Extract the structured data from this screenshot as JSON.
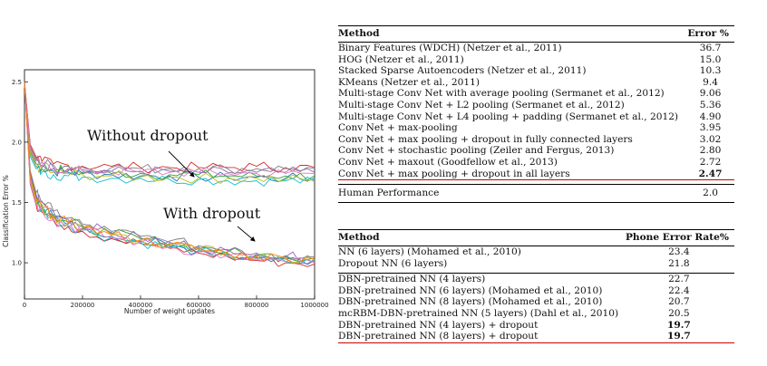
{
  "chart_data": {
    "type": "line",
    "title": "",
    "xlabel": "Number of weight updates",
    "ylabel": "Classification Error %",
    "xlim": [
      0,
      1000000
    ],
    "ylim": [
      0.7,
      2.6
    ],
    "x_ticks": [
      "0",
      "200000",
      "400000",
      "600000",
      "800000",
      "1000000"
    ],
    "y_ticks": [
      "1.0",
      "1.5",
      "2.0",
      "2.5"
    ],
    "annotations": [
      "Without dropout",
      "With dropout"
    ],
    "groups": [
      {
        "name": "Without dropout",
        "x": [
          0,
          20000,
          40000,
          60000,
          100000,
          150000,
          200000,
          300000,
          400000,
          500000,
          600000,
          700000,
          800000,
          900000,
          1000000
        ],
        "series": [
          {
            "color": "#1f77b4",
            "values": [
              2.5,
              1.9,
              1.8,
              1.78,
              1.76,
              1.75,
              1.74,
              1.73,
              1.72,
              1.72,
              1.71,
              1.71,
              1.71,
              1.7,
              1.7
            ]
          },
          {
            "color": "#2ca02c",
            "values": [
              2.5,
              1.92,
              1.82,
              1.79,
              1.78,
              1.76,
              1.75,
              1.74,
              1.74,
              1.73,
              1.73,
              1.72,
              1.72,
              1.72,
              1.72
            ]
          },
          {
            "color": "#d62728",
            "values": [
              2.5,
              1.98,
              1.88,
              1.84,
              1.82,
              1.81,
              1.8,
              1.8,
              1.79,
              1.79,
              1.79,
              1.79,
              1.8,
              1.79,
              1.79
            ]
          },
          {
            "color": "#17becf",
            "values": [
              2.5,
              1.88,
              1.78,
              1.75,
              1.73,
              1.72,
              1.71,
              1.7,
              1.7,
              1.69,
              1.69,
              1.68,
              1.68,
              1.68,
              1.67
            ]
          },
          {
            "color": "#9467bd",
            "values": [
              2.5,
              1.95,
              1.85,
              1.81,
              1.79,
              1.78,
              1.77,
              1.76,
              1.76,
              1.76,
              1.75,
              1.75,
              1.75,
              1.75,
              1.75
            ]
          },
          {
            "color": "#bcbd22",
            "values": [
              2.5,
              1.9,
              1.8,
              1.77,
              1.75,
              1.74,
              1.73,
              1.72,
              1.71,
              1.71,
              1.7,
              1.7,
              1.7,
              1.69,
              1.69
            ]
          },
          {
            "color": "#7f7f7f",
            "values": [
              2.5,
              1.96,
              1.86,
              1.83,
              1.81,
              1.8,
              1.79,
              1.79,
              1.78,
              1.78,
              1.78,
              1.78,
              1.78,
              1.78,
              1.78
            ]
          },
          {
            "color": "#e377c2",
            "values": [
              2.5,
              1.94,
              1.84,
              1.8,
              1.78,
              1.77,
              1.76,
              1.76,
              1.75,
              1.75,
              1.75,
              1.74,
              1.74,
              1.74,
              1.74
            ]
          }
        ]
      },
      {
        "name": "With dropout",
        "x": [
          0,
          20000,
          40000,
          60000,
          100000,
          150000,
          200000,
          300000,
          400000,
          500000,
          600000,
          700000,
          800000,
          900000,
          1000000
        ],
        "series": [
          {
            "color": "#1f77b4",
            "values": [
              2.5,
              1.7,
              1.52,
              1.45,
              1.38,
              1.32,
              1.28,
              1.22,
              1.18,
              1.14,
              1.1,
              1.07,
              1.04,
              1.03,
              1.02
            ]
          },
          {
            "color": "#2ca02c",
            "values": [
              2.5,
              1.72,
              1.55,
              1.48,
              1.4,
              1.34,
              1.3,
              1.24,
              1.2,
              1.16,
              1.12,
              1.09,
              1.06,
              1.05,
              1.04
            ]
          },
          {
            "color": "#d62728",
            "values": [
              2.5,
              1.65,
              1.48,
              1.42,
              1.35,
              1.3,
              1.26,
              1.2,
              1.16,
              1.12,
              1.08,
              1.05,
              1.02,
              1.0,
              0.99
            ]
          },
          {
            "color": "#17becf",
            "values": [
              2.5,
              1.68,
              1.5,
              1.44,
              1.37,
              1.31,
              1.27,
              1.21,
              1.17,
              1.13,
              1.09,
              1.06,
              1.03,
              1.01,
              1.0
            ]
          },
          {
            "color": "#9467bd",
            "values": [
              2.5,
              1.74,
              1.57,
              1.5,
              1.42,
              1.36,
              1.31,
              1.25,
              1.21,
              1.17,
              1.13,
              1.1,
              1.07,
              1.05,
              1.03
            ]
          },
          {
            "color": "#bcbd22",
            "values": [
              2.5,
              1.69,
              1.51,
              1.45,
              1.38,
              1.33,
              1.29,
              1.23,
              1.19,
              1.15,
              1.11,
              1.08,
              1.05,
              1.03,
              1.02
            ]
          },
          {
            "color": "#7f7f7f",
            "values": [
              2.5,
              1.76,
              1.58,
              1.51,
              1.43,
              1.37,
              1.32,
              1.26,
              1.22,
              1.18,
              1.14,
              1.11,
              1.08,
              1.06,
              1.05
            ]
          },
          {
            "color": "#e377c2",
            "values": [
              2.5,
              1.66,
              1.49,
              1.43,
              1.36,
              1.31,
              1.27,
              1.21,
              1.17,
              1.13,
              1.09,
              1.06,
              1.03,
              1.01,
              1.0
            ]
          },
          {
            "color": "#ff7f0e",
            "values": [
              2.5,
              1.71,
              1.53,
              1.46,
              1.39,
              1.33,
              1.29,
              1.23,
              1.19,
              1.15,
              1.11,
              1.08,
              1.05,
              1.04,
              1.03
            ]
          }
        ]
      }
    ]
  },
  "table1": {
    "headers": [
      "Method",
      "Error %"
    ],
    "rows": [
      [
        "Binary Features (WDCH) (Netzer et al., 2011)",
        "36.7"
      ],
      [
        "HOG (Netzer et al., 2011)",
        "15.0"
      ],
      [
        "Stacked Sparse Autoencoders (Netzer et al., 2011)",
        "10.3"
      ],
      [
        "KMeans (Netzer et al., 2011)",
        "9.4"
      ],
      [
        "Multi-stage Conv Net with average pooling (Sermanet et al., 2012)",
        "9.06"
      ],
      [
        "Multi-stage Conv Net + L2 pooling (Sermanet et al., 2012)",
        "5.36"
      ],
      [
        "Multi-stage Conv Net + L4 pooling + padding (Sermanet et al., 2012)",
        "4.90"
      ],
      [
        "Conv Net + max-pooling",
        "3.95"
      ],
      [
        "Conv Net + max pooling + dropout in fully connected layers",
        "3.02"
      ],
      [
        "Conv Net + stochastic pooling (Zeiler and Fergus, 2013)",
        "2.80"
      ],
      [
        "Conv Net + maxout (Goodfellow et al., 2013)",
        "2.72"
      ]
    ],
    "best_row": [
      "Conv Net + max pooling + dropout in all layers",
      "2.47"
    ],
    "footer_row": [
      "Human Performance",
      "2.0"
    ]
  },
  "table2": {
    "headers": [
      "Method",
      "Phone Error Rate%"
    ],
    "group1": [
      [
        "NN (6 layers) (Mohamed et al., 2010)",
        "23.4"
      ],
      [
        "Dropout NN (6 layers)",
        "21.8"
      ]
    ],
    "group2": [
      [
        "DBN-pretrained NN (4 layers)",
        "22.7"
      ],
      [
        "DBN-pretrained NN (6 layers) (Mohamed et al., 2010)",
        "22.4"
      ],
      [
        "DBN-pretrained NN (8 layers) (Mohamed et al., 2010)",
        "20.7"
      ],
      [
        "mcRBM-DBN-pretrained NN (5 layers) (Dahl et al., 2010)",
        "20.5"
      ]
    ],
    "best_rows": [
      [
        "DBN-pretrained NN (4 layers) + dropout",
        "19.7"
      ],
      [
        "DBN-pretrained NN (8 layers) + dropout",
        "19.7"
      ]
    ]
  }
}
